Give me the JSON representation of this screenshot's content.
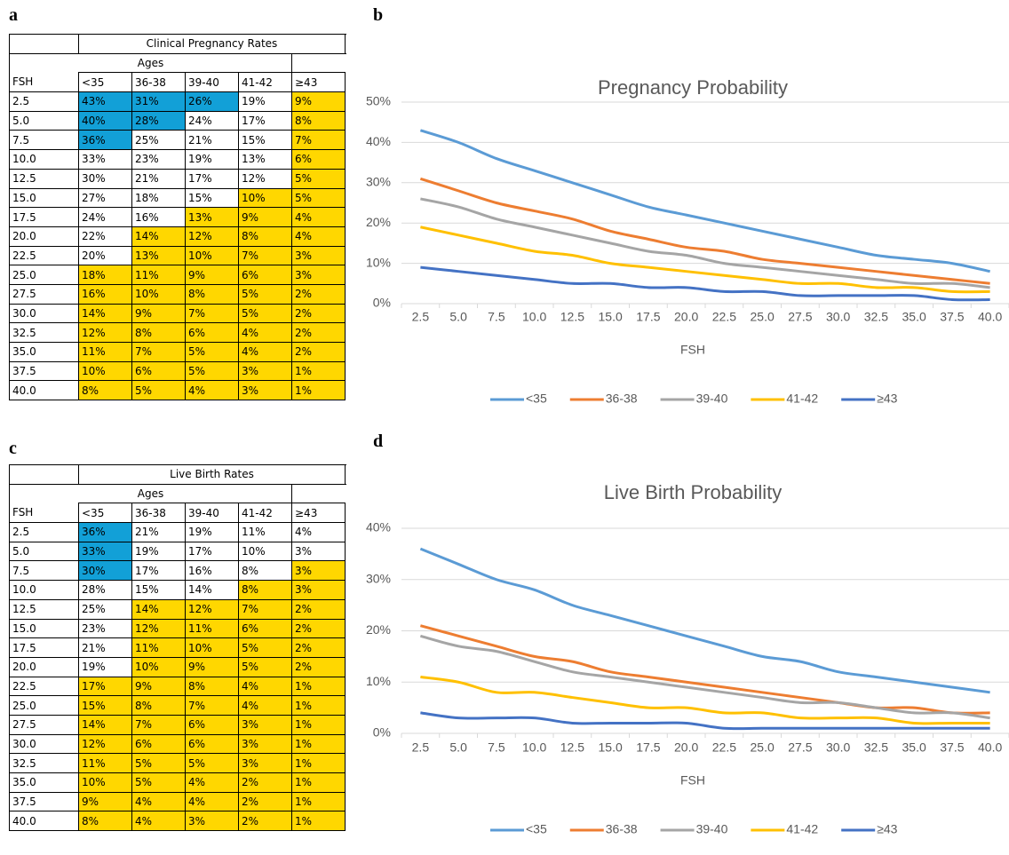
{
  "panel_labels": [
    "a",
    "b",
    "c",
    "d"
  ],
  "tables": [
    {
      "title": "Clinical Pregnancy Rates",
      "group_label": "Ages",
      "row_label": "FSH",
      "columns": [
        "<35",
        "36-38",
        "39-40",
        "41-42",
        "≥43"
      ],
      "rows": [
        {
          "fsh": "2.5",
          "cells": [
            "43%",
            "31%",
            "26%",
            "19%",
            "9%"
          ],
          "fills": [
            "#12a0d7",
            "#12a0d7",
            "#12a0d7",
            "#ffffff",
            "#ffd700"
          ]
        },
        {
          "fsh": "5.0",
          "cells": [
            "40%",
            "28%",
            "24%",
            "17%",
            "8%"
          ],
          "fills": [
            "#12a0d7",
            "#12a0d7",
            "#ffffff",
            "#ffffff",
            "#ffd700"
          ]
        },
        {
          "fsh": "7.5",
          "cells": [
            "36%",
            "25%",
            "21%",
            "15%",
            "7%"
          ],
          "fills": [
            "#12a0d7",
            "#ffffff",
            "#ffffff",
            "#ffffff",
            "#ffd700"
          ]
        },
        {
          "fsh": "10.0",
          "cells": [
            "33%",
            "23%",
            "19%",
            "13%",
            "6%"
          ],
          "fills": [
            "#ffffff",
            "#ffffff",
            "#ffffff",
            "#ffffff",
            "#ffd700"
          ]
        },
        {
          "fsh": "12.5",
          "cells": [
            "30%",
            "21%",
            "17%",
            "12%",
            "5%"
          ],
          "fills": [
            "#ffffff",
            "#ffffff",
            "#ffffff",
            "#ffffff",
            "#ffd700"
          ]
        },
        {
          "fsh": "15.0",
          "cells": [
            "27%",
            "18%",
            "15%",
            "10%",
            "5%"
          ],
          "fills": [
            "#ffffff",
            "#ffffff",
            "#ffffff",
            "#ffd700",
            "#ffd700"
          ]
        },
        {
          "fsh": "17.5",
          "cells": [
            "24%",
            "16%",
            "13%",
            "9%",
            "4%"
          ],
          "fills": [
            "#ffffff",
            "#ffffff",
            "#ffd700",
            "#ffd700",
            "#ffd700"
          ]
        },
        {
          "fsh": "20.0",
          "cells": [
            "22%",
            "14%",
            "12%",
            "8%",
            "4%"
          ],
          "fills": [
            "#ffffff",
            "#ffd700",
            "#ffd700",
            "#ffd700",
            "#ffd700"
          ]
        },
        {
          "fsh": "22.5",
          "cells": [
            "20%",
            "13%",
            "10%",
            "7%",
            "3%"
          ],
          "fills": [
            "#ffffff",
            "#ffd700",
            "#ffd700",
            "#ffd700",
            "#ffd700"
          ]
        },
        {
          "fsh": "25.0",
          "cells": [
            "18%",
            "11%",
            "9%",
            "6%",
            "3%"
          ],
          "fills": [
            "#ffd700",
            "#ffd700",
            "#ffd700",
            "#ffd700",
            "#ffd700"
          ]
        },
        {
          "fsh": "27.5",
          "cells": [
            "16%",
            "10%",
            "8%",
            "5%",
            "2%"
          ],
          "fills": [
            "#ffd700",
            "#ffd700",
            "#ffd700",
            "#ffd700",
            "#ffd700"
          ]
        },
        {
          "fsh": "30.0",
          "cells": [
            "14%",
            "9%",
            "7%",
            "5%",
            "2%"
          ],
          "fills": [
            "#ffd700",
            "#ffd700",
            "#ffd700",
            "#ffd700",
            "#ffd700"
          ]
        },
        {
          "fsh": "32.5",
          "cells": [
            "12%",
            "8%",
            "6%",
            "4%",
            "2%"
          ],
          "fills": [
            "#ffd700",
            "#ffd700",
            "#ffd700",
            "#ffd700",
            "#ffd700"
          ]
        },
        {
          "fsh": "35.0",
          "cells": [
            "11%",
            "7%",
            "5%",
            "4%",
            "2%"
          ],
          "fills": [
            "#ffd700",
            "#ffd700",
            "#ffd700",
            "#ffd700",
            "#ffd700"
          ]
        },
        {
          "fsh": "37.5",
          "cells": [
            "10%",
            "6%",
            "5%",
            "3%",
            "1%"
          ],
          "fills": [
            "#ffd700",
            "#ffd700",
            "#ffd700",
            "#ffd700",
            "#ffd700"
          ]
        },
        {
          "fsh": "40.0",
          "cells": [
            "8%",
            "5%",
            "4%",
            "3%",
            "1%"
          ],
          "fills": [
            "#ffd700",
            "#ffd700",
            "#ffd700",
            "#ffd700",
            "#ffd700"
          ]
        }
      ]
    },
    {
      "title": "Live Birth Rates",
      "group_label": "Ages",
      "row_label": "FSH",
      "columns": [
        "<35",
        "36-38",
        "39-40",
        "41-42",
        "≥43"
      ],
      "rows": [
        {
          "fsh": "2.5",
          "cells": [
            "36%",
            "21%",
            "19%",
            "11%",
            "4%"
          ],
          "fills": [
            "#12a0d7",
            "#ffffff",
            "#ffffff",
            "#ffffff",
            "#ffffff"
          ]
        },
        {
          "fsh": "5.0",
          "cells": [
            "33%",
            "19%",
            "17%",
            "10%",
            "3%"
          ],
          "fills": [
            "#12a0d7",
            "#ffffff",
            "#ffffff",
            "#ffffff",
            "#ffffff"
          ]
        },
        {
          "fsh": "7.5",
          "cells": [
            "30%",
            "17%",
            "16%",
            "8%",
            "3%"
          ],
          "fills": [
            "#12a0d7",
            "#ffffff",
            "#ffffff",
            "#ffffff",
            "#ffd700"
          ]
        },
        {
          "fsh": "10.0",
          "cells": [
            "28%",
            "15%",
            "14%",
            "8%",
            "3%"
          ],
          "fills": [
            "#ffffff",
            "#ffffff",
            "#ffffff",
            "#ffd700",
            "#ffd700"
          ]
        },
        {
          "fsh": "12.5",
          "cells": [
            "25%",
            "14%",
            "12%",
            "7%",
            "2%"
          ],
          "fills": [
            "#ffffff",
            "#ffd700",
            "#ffd700",
            "#ffd700",
            "#ffd700"
          ]
        },
        {
          "fsh": "15.0",
          "cells": [
            "23%",
            "12%",
            "11%",
            "6%",
            "2%"
          ],
          "fills": [
            "#ffffff",
            "#ffd700",
            "#ffd700",
            "#ffd700",
            "#ffd700"
          ]
        },
        {
          "fsh": "17.5",
          "cells": [
            "21%",
            "11%",
            "10%",
            "5%",
            "2%"
          ],
          "fills": [
            "#ffffff",
            "#ffd700",
            "#ffd700",
            "#ffd700",
            "#ffd700"
          ]
        },
        {
          "fsh": "20.0",
          "cells": [
            "19%",
            "10%",
            "9%",
            "5%",
            "2%"
          ],
          "fills": [
            "#ffffff",
            "#ffd700",
            "#ffd700",
            "#ffd700",
            "#ffd700"
          ]
        },
        {
          "fsh": "22.5",
          "cells": [
            "17%",
            "9%",
            "8%",
            "4%",
            "1%"
          ],
          "fills": [
            "#ffd700",
            "#ffd700",
            "#ffd700",
            "#ffd700",
            "#ffd700"
          ]
        },
        {
          "fsh": "25.0",
          "cells": [
            "15%",
            "8%",
            "7%",
            "4%",
            "1%"
          ],
          "fills": [
            "#ffd700",
            "#ffd700",
            "#ffd700",
            "#ffd700",
            "#ffd700"
          ]
        },
        {
          "fsh": "27.5",
          "cells": [
            "14%",
            "7%",
            "6%",
            "3%",
            "1%"
          ],
          "fills": [
            "#ffd700",
            "#ffd700",
            "#ffd700",
            "#ffd700",
            "#ffd700"
          ]
        },
        {
          "fsh": "30.0",
          "cells": [
            "12%",
            "6%",
            "6%",
            "3%",
            "1%"
          ],
          "fills": [
            "#ffd700",
            "#ffd700",
            "#ffd700",
            "#ffd700",
            "#ffd700"
          ]
        },
        {
          "fsh": "32.5",
          "cells": [
            "11%",
            "5%",
            "5%",
            "3%",
            "1%"
          ],
          "fills": [
            "#ffd700",
            "#ffd700",
            "#ffd700",
            "#ffd700",
            "#ffd700"
          ]
        },
        {
          "fsh": "35.0",
          "cells": [
            "10%",
            "5%",
            "4%",
            "2%",
            "1%"
          ],
          "fills": [
            "#ffd700",
            "#ffd700",
            "#ffd700",
            "#ffd700",
            "#ffd700"
          ]
        },
        {
          "fsh": "37.5",
          "cells": [
            "9%",
            "4%",
            "4%",
            "2%",
            "1%"
          ],
          "fills": [
            "#ffd700",
            "#ffd700",
            "#ffd700",
            "#ffd700",
            "#ffd700"
          ]
        },
        {
          "fsh": "40.0",
          "cells": [
            "8%",
            "4%",
            "3%",
            "2%",
            "1%"
          ],
          "fills": [
            "#ffd700",
            "#ffd700",
            "#ffd700",
            "#ffd700",
            "#ffd700"
          ]
        }
      ]
    }
  ],
  "chart_data": [
    {
      "type": "line",
      "title": "Pregnancy Probability",
      "x_label": "FSH",
      "categories": [
        "2.5",
        "5.0",
        "7.5",
        "10.0",
        "12.5",
        "15.0",
        "17.5",
        "20.0",
        "22.5",
        "25.0",
        "27.5",
        "30.0",
        "32.5",
        "35.0",
        "37.5",
        "40.0"
      ],
      "ylim": [
        0,
        50
      ],
      "yticks": [
        {
          "value": 0,
          "label": "0%"
        },
        {
          "value": 10,
          "label": "10%"
        },
        {
          "value": 20,
          "label": "20%"
        },
        {
          "value": 30,
          "label": "30%"
        },
        {
          "value": 40,
          "label": "40%"
        },
        {
          "value": 50,
          "label": "50%"
        }
      ],
      "grid": true,
      "legend": "bottom",
      "series": [
        {
          "name": "<35",
          "color": "#5b9bd5",
          "values": [
            43,
            40,
            36,
            33,
            30,
            27,
            24,
            22,
            20,
            18,
            16,
            14,
            12,
            11,
            10,
            8
          ]
        },
        {
          "name": "36-38",
          "color": "#ed7d31",
          "values": [
            31,
            28,
            25,
            23,
            21,
            18,
            16,
            14,
            13,
            11,
            10,
            9,
            8,
            7,
            6,
            5
          ]
        },
        {
          "name": "39-40",
          "color": "#a5a5a5",
          "values": [
            26,
            24,
            21,
            19,
            17,
            15,
            13,
            12,
            10,
            9,
            8,
            7,
            6,
            5,
            5,
            4
          ]
        },
        {
          "name": "41-42",
          "color": "#ffc000",
          "values": [
            19,
            17,
            15,
            13,
            12,
            10,
            9,
            8,
            7,
            6,
            5,
            5,
            4,
            4,
            3,
            3
          ]
        },
        {
          "name": "≥43",
          "color": "#4472c4",
          "values": [
            9,
            8,
            7,
            6,
            5,
            5,
            4,
            4,
            3,
            3,
            2,
            2,
            2,
            2,
            1,
            1
          ]
        }
      ]
    },
    {
      "type": "line",
      "title": "Live Birth Probability",
      "x_label": "FSH",
      "categories": [
        "2.5",
        "5.0",
        "7.5",
        "10.0",
        "12.5",
        "15.0",
        "17.5",
        "20.0",
        "22.5",
        "25.0",
        "27.5",
        "30.0",
        "32.5",
        "35.0",
        "37.5",
        "40.0"
      ],
      "ylim": [
        0,
        40
      ],
      "yticks": [
        {
          "value": 0,
          "label": "0%"
        },
        {
          "value": 10,
          "label": "10%"
        },
        {
          "value": 20,
          "label": "20%"
        },
        {
          "value": 30,
          "label": "30%"
        },
        {
          "value": 40,
          "label": "40%"
        }
      ],
      "grid": true,
      "legend": "bottom",
      "series": [
        {
          "name": "<35",
          "color": "#5b9bd5",
          "values": [
            36,
            33,
            30,
            28,
            25,
            23,
            21,
            19,
            17,
            15,
            14,
            12,
            11,
            10,
            9,
            8
          ]
        },
        {
          "name": "36-38",
          "color": "#ed7d31",
          "values": [
            21,
            19,
            17,
            15,
            14,
            12,
            11,
            10,
            9,
            8,
            7,
            6,
            5,
            5,
            4,
            4
          ]
        },
        {
          "name": "39-40",
          "color": "#a5a5a5",
          "values": [
            19,
            17,
            16,
            14,
            12,
            11,
            10,
            9,
            8,
            7,
            6,
            6,
            5,
            4,
            4,
            3
          ]
        },
        {
          "name": "41-42",
          "color": "#ffc000",
          "values": [
            11,
            10,
            8,
            8,
            7,
            6,
            5,
            5,
            4,
            4,
            3,
            3,
            3,
            2,
            2,
            2
          ]
        },
        {
          "name": "≥43",
          "color": "#4472c4",
          "values": [
            4,
            3,
            3,
            3,
            2,
            2,
            2,
            2,
            1,
            1,
            1,
            1,
            1,
            1,
            1,
            1
          ]
        }
      ]
    }
  ]
}
